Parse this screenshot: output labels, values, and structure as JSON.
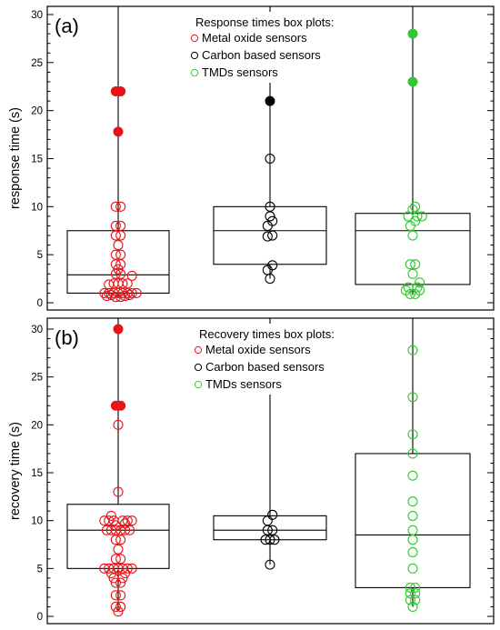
{
  "chart_data": [
    {
      "type": "box",
      "panel_label": "(a)",
      "ylabel": "response time (s)",
      "ylim": [
        0,
        30
      ],
      "yticks": [
        0,
        5,
        10,
        15,
        20,
        25,
        30
      ],
      "legend": {
        "title": "Response times box plots:",
        "placement": "top-center",
        "entries": [
          "Metal oxide sensors",
          "Carbon based sensors",
          "TMDs sensors"
        ]
      },
      "series": [
        {
          "name": "Metal oxide sensors",
          "color": "#e8141a",
          "box": {
            "q1": 1.0,
            "median": 2.9,
            "q3": 7.5,
            "whisker_low": 0.5,
            "whisker_high": 30
          },
          "points": [
            [
              -0.4,
              1
            ],
            [
              -0.27,
              1
            ],
            [
              -0.13,
              1
            ],
            [
              0.0,
              1
            ],
            [
              0.13,
              1
            ],
            [
              0.27,
              1
            ],
            [
              0.4,
              1
            ],
            [
              0.53,
              1
            ],
            [
              -0.33,
              0.7
            ],
            [
              -0.2,
              0.8
            ],
            [
              -0.07,
              0.6
            ],
            [
              0.07,
              0.6
            ],
            [
              0.2,
              0.7
            ],
            [
              0.33,
              0.8
            ],
            [
              -0.27,
              1.9
            ],
            [
              -0.13,
              2
            ],
            [
              0.0,
              2
            ],
            [
              0.13,
              2
            ],
            [
              0.27,
              2
            ],
            [
              0.4,
              2.8
            ],
            [
              -0.07,
              3
            ],
            [
              0.07,
              3
            ],
            [
              0.0,
              3.5
            ],
            [
              -0.07,
              4
            ],
            [
              0.07,
              4
            ],
            [
              -0.07,
              5
            ],
            [
              0.07,
              5
            ],
            [
              0.0,
              6
            ],
            [
              -0.07,
              7
            ],
            [
              0.07,
              7
            ],
            [
              -0.07,
              8
            ],
            [
              0.07,
              8
            ],
            [
              -0.07,
              10
            ],
            [
              0.07,
              10
            ]
          ],
          "outliers": [
            [
              -0.07,
              22
            ],
            [
              0.07,
              22
            ],
            [
              0.0,
              17.8
            ]
          ]
        },
        {
          "name": "Carbon based sensors",
          "color": "#000000",
          "box": {
            "q1": 4.0,
            "median": 7.5,
            "q3": 10.0,
            "whisker_low": 2.5,
            "whisker_high": 30
          },
          "points": [
            [
              0.0,
              2.5
            ],
            [
              -0.07,
              3.4
            ],
            [
              0.07,
              3.9
            ],
            [
              -0.07,
              6.9
            ],
            [
              0.07,
              7
            ],
            [
              -0.07,
              8
            ],
            [
              0.07,
              8.5
            ],
            [
              0.0,
              9
            ],
            [
              0.0,
              10
            ],
            [
              0.0,
              15
            ]
          ],
          "outliers": [
            [
              0.0,
              21
            ]
          ]
        },
        {
          "name": "TMDs sensors",
          "color": "#32c832",
          "box": {
            "q1": 1.9,
            "median": 7.5,
            "q3": 9.3,
            "whisker_low": 0.8,
            "whisker_high": 30
          },
          "points": [
            [
              -0.07,
              0.9
            ],
            [
              0.07,
              0.9
            ],
            [
              -0.2,
              1.3
            ],
            [
              0.2,
              1.3
            ],
            [
              -0.13,
              1.6
            ],
            [
              0.13,
              1.6
            ],
            [
              0.2,
              2.1
            ],
            [
              0.0,
              3
            ],
            [
              -0.07,
              4
            ],
            [
              0.07,
              4
            ],
            [
              0.0,
              7
            ],
            [
              -0.07,
              8
            ],
            [
              0.07,
              8.5
            ],
            [
              -0.13,
              9
            ],
            [
              0.13,
              9
            ],
            [
              0.27,
              9
            ],
            [
              0.0,
              9.7
            ],
            [
              0.07,
              10
            ]
          ],
          "outliers": [
            [
              0.0,
              28
            ],
            [
              0.0,
              23
            ]
          ]
        }
      ]
    },
    {
      "type": "box",
      "panel_label": "(b)",
      "ylabel": "recovery time (s)",
      "ylim": [
        0,
        30
      ],
      "yticks": [
        0,
        5,
        10,
        15,
        20,
        25,
        30
      ],
      "legend": {
        "title": "Recovery times box plots:",
        "placement": "top-center",
        "entries": [
          "Metal oxide sensors",
          "Carbon based sensors",
          "TMDs sensors"
        ]
      },
      "series": [
        {
          "name": "Metal oxide sensors",
          "color": "#e8141a",
          "box": {
            "q1": 5.0,
            "median": 9.0,
            "q3": 11.7,
            "whisker_low": 0.5,
            "whisker_high": 30
          },
          "points": [
            [
              0.0,
              0.5
            ],
            [
              -0.07,
              1
            ],
            [
              0.07,
              1
            ],
            [
              -0.07,
              2.2
            ],
            [
              0.07,
              2.2
            ],
            [
              -0.07,
              3.5
            ],
            [
              0.07,
              3.5
            ],
            [
              -0.13,
              4
            ],
            [
              0.13,
              4
            ],
            [
              -0.2,
              4.5
            ],
            [
              0.2,
              4.5
            ],
            [
              -0.4,
              5
            ],
            [
              -0.27,
              5
            ],
            [
              -0.13,
              5
            ],
            [
              0.0,
              5
            ],
            [
              0.13,
              5
            ],
            [
              0.27,
              5
            ],
            [
              0.4,
              5
            ],
            [
              -0.07,
              6
            ],
            [
              0.07,
              6
            ],
            [
              0.0,
              7
            ],
            [
              -0.07,
              8
            ],
            [
              0.07,
              8
            ],
            [
              -0.33,
              9
            ],
            [
              -0.2,
              9
            ],
            [
              -0.07,
              9
            ],
            [
              0.07,
              9
            ],
            [
              0.2,
              9
            ],
            [
              0.33,
              9
            ],
            [
              -0.4,
              10
            ],
            [
              -0.27,
              10
            ],
            [
              -0.13,
              10
            ],
            [
              0.13,
              10
            ],
            [
              0.27,
              10
            ],
            [
              0.4,
              10
            ],
            [
              -0.2,
              10.5
            ],
            [
              0.2,
              9.7
            ],
            [
              -0.07,
              9.5
            ],
            [
              0.0,
              13
            ],
            [
              0.0,
              20
            ]
          ],
          "outliers": [
            [
              -0.07,
              22
            ],
            [
              0.07,
              22
            ],
            [
              0.0,
              30
            ]
          ]
        },
        {
          "name": "Carbon based sensors",
          "color": "#000000",
          "box": {
            "q1": 8.0,
            "median": 9.0,
            "q3": 10.5,
            "whisker_low": 5.4,
            "whisker_high": 30
          },
          "points": [
            [
              0.0,
              5.4
            ],
            [
              -0.13,
              8
            ],
            [
              0.0,
              8
            ],
            [
              0.13,
              8
            ],
            [
              -0.07,
              9
            ],
            [
              0.07,
              9
            ],
            [
              -0.07,
              10
            ],
            [
              0.07,
              10.6
            ]
          ],
          "outliers": []
        },
        {
          "name": "TMDs sensors",
          "color": "#32c832",
          "box": {
            "q1": 3.0,
            "median": 8.5,
            "q3": 17.0,
            "whisker_low": 1.0,
            "whisker_high": 30
          },
          "points": [
            [
              0.0,
              1
            ],
            [
              -0.07,
              1.7
            ],
            [
              0.07,
              1.7
            ],
            [
              -0.07,
              2.4
            ],
            [
              0.07,
              2.4
            ],
            [
              -0.07,
              3
            ],
            [
              0.07,
              3
            ],
            [
              0.0,
              5
            ],
            [
              0.0,
              6.7
            ],
            [
              0.0,
              8
            ],
            [
              0.0,
              9
            ],
            [
              0.0,
              10.5
            ],
            [
              0.0,
              12
            ],
            [
              0.0,
              14.7
            ],
            [
              0.0,
              17
            ],
            [
              0.0,
              19
            ],
            [
              0.0,
              22.9
            ],
            [
              0.0,
              27.8
            ]
          ],
          "outliers": []
        }
      ]
    }
  ]
}
